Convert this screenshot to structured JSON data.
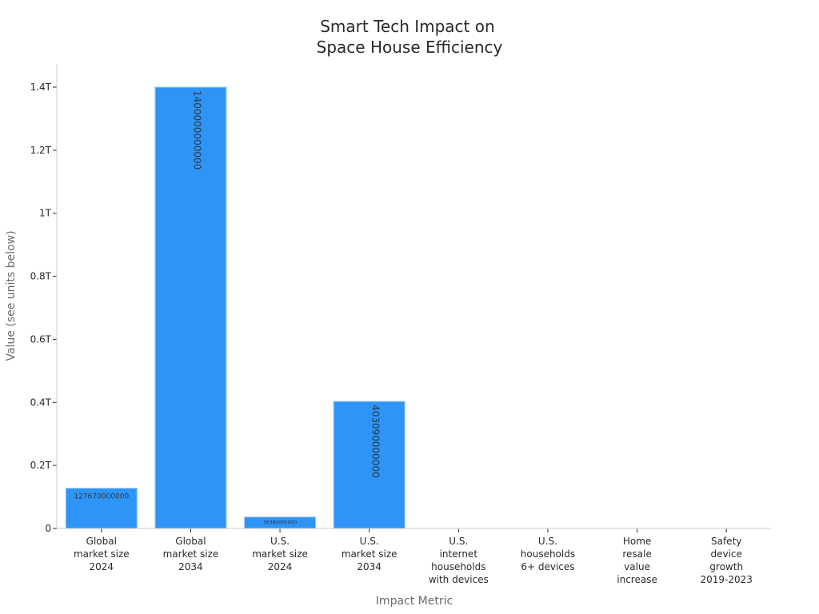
{
  "chart_data": {
    "type": "bar",
    "title_lines": [
      "Smart Tech Impact on",
      "Space House Efficiency"
    ],
    "xlabel": "Impact Metric",
    "ylabel": "Value (see units below)",
    "ylim": [
      0,
      1400000000000
    ],
    "yticks": [
      {
        "value": 0,
        "label": "0"
      },
      {
        "value": 200000000000,
        "label": "0.2T"
      },
      {
        "value": 400000000000,
        "label": "0.4T"
      },
      {
        "value": 600000000000,
        "label": "0.6T"
      },
      {
        "value": 800000000000,
        "label": "0.8T"
      },
      {
        "value": 1000000000000,
        "label": "1T"
      },
      {
        "value": 1200000000000,
        "label": "1.2T"
      },
      {
        "value": 1400000000000,
        "label": "1.4T"
      }
    ],
    "categories": [
      [
        "Global",
        "market size",
        "2024"
      ],
      [
        "Global",
        "market size",
        "2034"
      ],
      [
        "U.S.",
        "market size",
        "2024"
      ],
      [
        "U.S.",
        "market size",
        "2034"
      ],
      [
        "U.S.",
        "internet",
        "households",
        "with devices"
      ],
      [
        "U.S.",
        "households",
        "6+ devices"
      ],
      [
        "Home",
        "resale",
        "value",
        "increase"
      ],
      [
        "Safety",
        "device",
        "growth",
        "2019-2023"
      ]
    ],
    "values": [
      127670000000,
      1400000000000,
      36380000000,
      403090000000,
      null,
      null,
      null,
      null
    ],
    "data_labels": [
      "127670000000",
      "1400000000000",
      "36380000000",
      "403090000000",
      "",
      "",
      "",
      ""
    ],
    "colors": {
      "bar": "#2e95f7",
      "bar_edge": "#9ec9f5",
      "axis": "#cccccc"
    },
    "grid": false
  }
}
